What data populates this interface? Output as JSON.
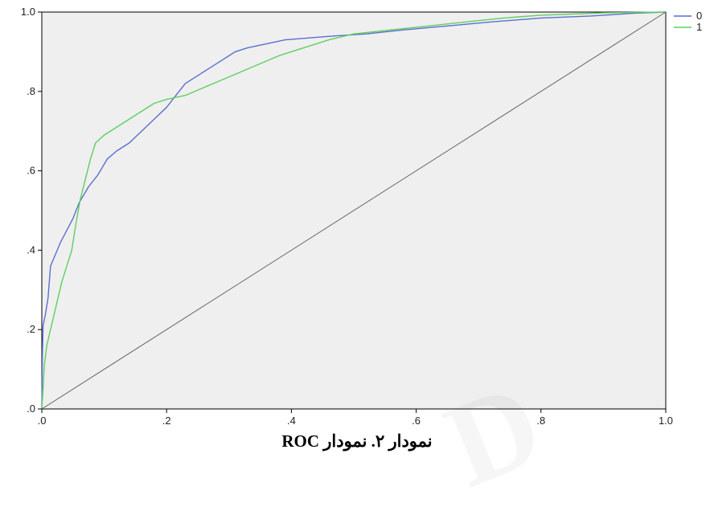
{
  "caption": "نمودار ۲. نمودار ROC",
  "watermark": "D",
  "colors": {
    "plot_background": "#efefef",
    "series_0": "#5a6fcf",
    "series_1": "#5fcf5f",
    "diagonal": "#666666",
    "axis": "#000000"
  },
  "chart_data": {
    "type": "line",
    "title": "",
    "xlabel": "",
    "ylabel": "",
    "xlim": [
      0,
      1
    ],
    "ylim": [
      0,
      1
    ],
    "grid": false,
    "legend_position": "right-top",
    "x_tick_labels": [
      ".0",
      ".2",
      ".4",
      ".6",
      ".8",
      "1.0"
    ],
    "y_tick_labels": [
      ".0",
      ".2",
      ".4",
      ".6",
      ".8",
      "1.0"
    ],
    "series": [
      {
        "name": "0",
        "color": "#5a6fcf",
        "points": [
          [
            0.0,
            0.0
          ],
          [
            0.001,
            0.14
          ],
          [
            0.002,
            0.21
          ],
          [
            0.006,
            0.24
          ],
          [
            0.01,
            0.28
          ],
          [
            0.014,
            0.36
          ],
          [
            0.022,
            0.39
          ],
          [
            0.03,
            0.42
          ],
          [
            0.04,
            0.45
          ],
          [
            0.05,
            0.48
          ],
          [
            0.06,
            0.52
          ],
          [
            0.075,
            0.56
          ],
          [
            0.09,
            0.59
          ],
          [
            0.105,
            0.63
          ],
          [
            0.12,
            0.65
          ],
          [
            0.14,
            0.67
          ],
          [
            0.16,
            0.7
          ],
          [
            0.18,
            0.73
          ],
          [
            0.2,
            0.76
          ],
          [
            0.215,
            0.79
          ],
          [
            0.23,
            0.82
          ],
          [
            0.25,
            0.84
          ],
          [
            0.27,
            0.86
          ],
          [
            0.29,
            0.88
          ],
          [
            0.31,
            0.9
          ],
          [
            0.33,
            0.91
          ],
          [
            0.36,
            0.92
          ],
          [
            0.39,
            0.93
          ],
          [
            0.43,
            0.935
          ],
          [
            0.47,
            0.94
          ],
          [
            0.52,
            0.945
          ],
          [
            0.58,
            0.955
          ],
          [
            0.65,
            0.965
          ],
          [
            0.72,
            0.975
          ],
          [
            0.8,
            0.985
          ],
          [
            0.88,
            0.99
          ],
          [
            0.95,
            0.997
          ],
          [
            1.0,
            1.0
          ]
        ]
      },
      {
        "name": "1",
        "color": "#5fcf5f",
        "points": [
          [
            0.0,
            0.0
          ],
          [
            0.002,
            0.05
          ],
          [
            0.004,
            0.11
          ],
          [
            0.008,
            0.16
          ],
          [
            0.014,
            0.2
          ],
          [
            0.02,
            0.24
          ],
          [
            0.026,
            0.28
          ],
          [
            0.032,
            0.32
          ],
          [
            0.04,
            0.36
          ],
          [
            0.048,
            0.4
          ],
          [
            0.055,
            0.47
          ],
          [
            0.062,
            0.53
          ],
          [
            0.07,
            0.58
          ],
          [
            0.078,
            0.63
          ],
          [
            0.086,
            0.67
          ],
          [
            0.1,
            0.69
          ],
          [
            0.12,
            0.71
          ],
          [
            0.14,
            0.73
          ],
          [
            0.16,
            0.75
          ],
          [
            0.18,
            0.77
          ],
          [
            0.2,
            0.78
          ],
          [
            0.23,
            0.79
          ],
          [
            0.26,
            0.81
          ],
          [
            0.29,
            0.83
          ],
          [
            0.32,
            0.85
          ],
          [
            0.35,
            0.87
          ],
          [
            0.38,
            0.89
          ],
          [
            0.42,
            0.91
          ],
          [
            0.46,
            0.93
          ],
          [
            0.5,
            0.945
          ],
          [
            0.56,
            0.955
          ],
          [
            0.62,
            0.965
          ],
          [
            0.68,
            0.975
          ],
          [
            0.74,
            0.985
          ],
          [
            0.8,
            0.992
          ],
          [
            0.9,
            0.998
          ],
          [
            1.0,
            1.0
          ]
        ]
      },
      {
        "name": "",
        "color": "#666666",
        "points": [
          [
            0,
            0
          ],
          [
            1,
            1
          ]
        ]
      }
    ]
  }
}
